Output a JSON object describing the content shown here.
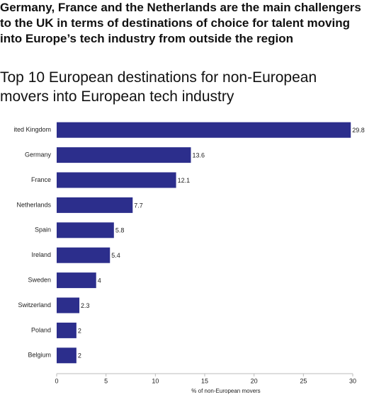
{
  "headline": "Germany, France and the Netherlands are the main challengers to the UK in terms of destinations of choice for talent moving into Europe’s tech industry from outside the region",
  "chart_data": {
    "type": "hbar",
    "title": "Top 10 European destinations for non-European movers into European tech industry",
    "categories": [
      "ited Kingdom",
      "Germany",
      "France",
      "Netherlands",
      "Spain",
      "Ireland",
      "Sweden",
      "Switzerland",
      "Poland",
      "Belgium"
    ],
    "values": [
      29.8,
      13.6,
      12.1,
      7.7,
      5.8,
      5.4,
      4,
      2.3,
      2,
      2
    ],
    "color": "#2c2e8c",
    "xlabel": "% of non-European movers",
    "xlim": [
      0,
      30
    ],
    "xticks": [
      0,
      5,
      10,
      15,
      20,
      25,
      30
    ]
  }
}
